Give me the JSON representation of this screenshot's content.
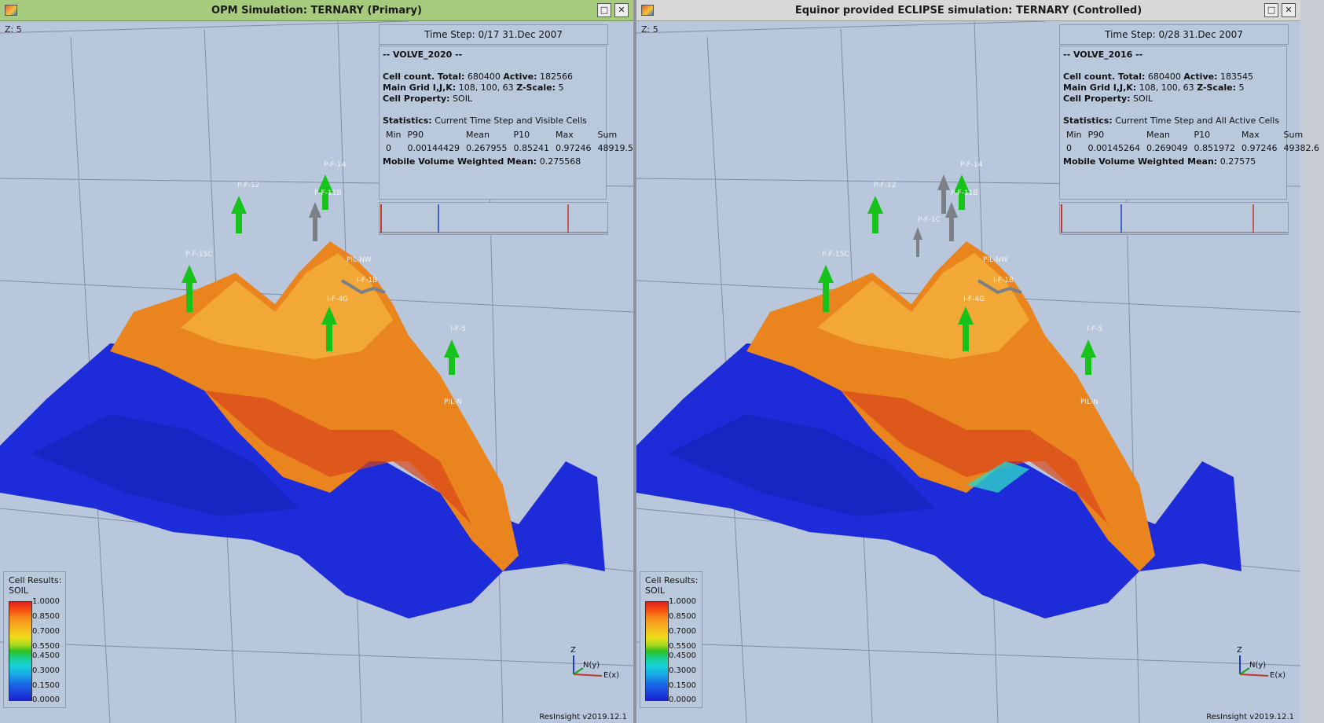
{
  "left": {
    "title": "OPM Simulation: TERNARY (Primary)",
    "z_label": "Z: 5",
    "time_step": "Time Step: 0/17 31.Dec 2007",
    "case_name": "-- VOLVE_2020 --",
    "cell_count_label": "Cell count. Total:",
    "cell_count_total": "680400",
    "active_label": "Active:",
    "active": "182566",
    "main_grid_label": "Main Grid I,J,K:",
    "main_grid": "108, 100, 63",
    "z_scale_label": "Z-Scale:",
    "z_scale": "5",
    "cell_property_label": "Cell Property:",
    "cell_property": "SOIL",
    "statistics_label": "Statistics:",
    "statistics_scope": "Current Time Step and Visible Cells",
    "stats_headers": [
      "Min",
      "P90",
      "Mean",
      "P10",
      "Max",
      "Sum"
    ],
    "stats_values": [
      "0",
      "0.00144429",
      "0.267955",
      "0.85241",
      "0.97246",
      "48919.5"
    ],
    "mobile_label": "Mobile Volume Weighted Mean:",
    "mobile_value": "0.275568",
    "wells": [
      "P-F-14",
      "P-F-12",
      "P-F-11B",
      "P-F-15C",
      "PIL-NW",
      "I-F-1B",
      "I-F-4G",
      "I-F-5",
      "PIL-N"
    ]
  },
  "right": {
    "title": "Equinor provided ECLIPSE simulation: TERNARY (Controlled)",
    "z_label": "Z: 5",
    "time_step": "Time Step: 0/28 31.Dec 2007",
    "case_name": "-- VOLVE_2016 --",
    "cell_count_label": "Cell count. Total:",
    "cell_count_total": "680400",
    "active_label": "Active:",
    "active": "183545",
    "main_grid_label": "Main Grid I,J,K:",
    "main_grid": "108, 100, 63",
    "z_scale_label": "Z-Scale:",
    "z_scale": "5",
    "cell_property_label": "Cell Property:",
    "cell_property": "SOIL",
    "statistics_label": "Statistics:",
    "statistics_scope": "Current Time Step and All Active Cells",
    "stats_headers": [
      "Min",
      "P90",
      "Mean",
      "P10",
      "Max",
      "Sum"
    ],
    "stats_values": [
      "0",
      "0.00145264",
      "0.269049",
      "0.851972",
      "0.97246",
      "49382.6"
    ],
    "mobile_label": "Mobile Volume Weighted Mean:",
    "mobile_value": "0.27575",
    "wells": [
      "P-F-14",
      "P-F-12",
      "P-F-11B",
      "P-F-1C",
      "P-F-15C",
      "PIL-NW",
      "I-F-1B",
      "I-F-4G",
      "I-F-5",
      "PIL-N"
    ]
  },
  "legend": {
    "title": "Cell Results:",
    "property": "SOIL",
    "ticks": [
      "1.0000",
      "0.8500",
      "0.7000",
      "0.5500",
      "0.4500",
      "0.3000",
      "0.1500",
      "0.0000"
    ]
  },
  "axes": {
    "z": "Z",
    "n": "N(y)",
    "e": "E(x)"
  },
  "version": "ResInsight v2019.12.1",
  "window_buttons": {
    "maximize": "□",
    "close": "✕"
  },
  "colors": {
    "background": "#b9c7dc",
    "left_titlebar": "#a7cb7d",
    "right_titlebar": "#d8d8d8",
    "water_zone": "#1d2bd9",
    "oil_zone": "#e9841e",
    "producer_arrow": "#17c21b",
    "inactive_well": "#7b7f86"
  }
}
